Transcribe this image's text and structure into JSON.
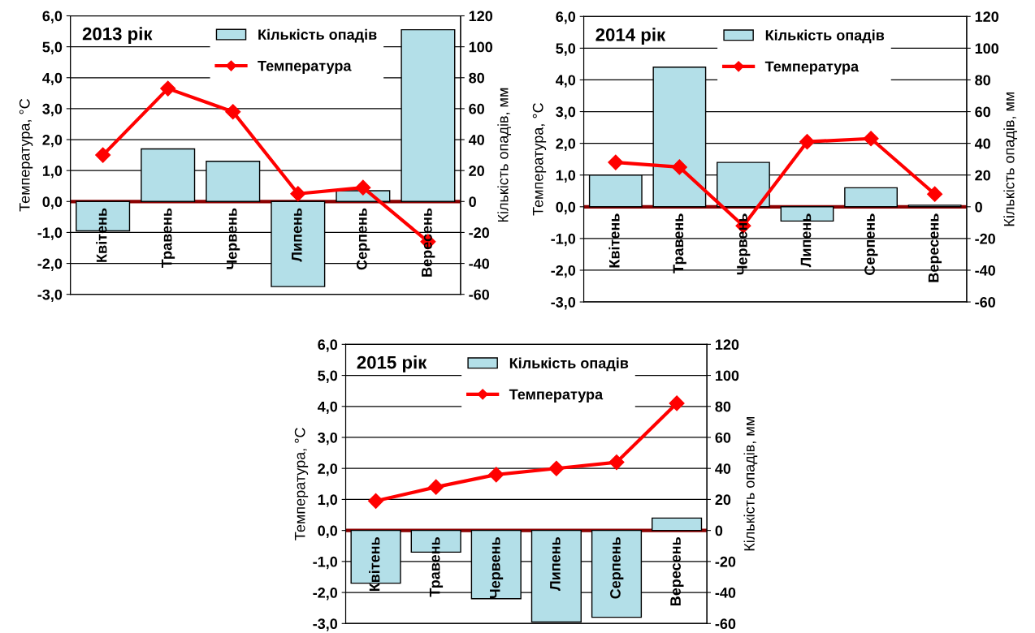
{
  "chart_data": [
    {
      "type": "bar",
      "title": "2013 рік",
      "ylabel": "Температура, °C",
      "y2label": "Кількість опадів, мм",
      "categories": [
        "Квітень",
        "Травень",
        "Червень",
        "Липень",
        "Серпень",
        "Вересень"
      ],
      "series": [
        {
          "name": "Кількість опадів",
          "axis": "y2",
          "color": "#b3dfe8",
          "values": [
            -19,
            34,
            26,
            -55,
            7,
            111
          ]
        },
        {
          "name": "Температура",
          "type": "line",
          "axis": "y",
          "color": "#ff0000",
          "marker": "diamond",
          "values": [
            1.5,
            3.65,
            2.9,
            0.25,
            0.45,
            -1.3
          ]
        }
      ],
      "ylim": [
        -3,
        6
      ],
      "yticks": [
        {
          "value": -3,
          "label": "-3,0"
        },
        {
          "value": -2,
          "label": "-2,0"
        },
        {
          "value": -1,
          "label": "-1,0"
        },
        {
          "value": 0,
          "label": "0,0"
        },
        {
          "value": 1,
          "label": "1,0"
        },
        {
          "value": 2,
          "label": "2,0"
        },
        {
          "value": 3,
          "label": "3,0"
        },
        {
          "value": 4,
          "label": "4,0"
        },
        {
          "value": 5,
          "label": "5,0"
        },
        {
          "value": 6,
          "label": "6,0"
        }
      ],
      "y2lim": [
        -60,
        120
      ],
      "y2ticks": [
        -60,
        -40,
        -20,
        0,
        20,
        40,
        60,
        80,
        100,
        120
      ],
      "grid": "y",
      "legend": "top right"
    },
    {
      "type": "bar",
      "title": "2014 рік",
      "ylabel": "Температура, °C",
      "y2label": "Кількість опадів, мм",
      "categories": [
        "Квітень",
        "Травень",
        "Червень",
        "Липень",
        "Серпень",
        "Вересень"
      ],
      "series": [
        {
          "name": "Кількість опадів",
          "axis": "y2",
          "color": "#b3dfe8",
          "values": [
            20,
            88,
            28,
            -9,
            12,
            1
          ]
        },
        {
          "name": "Температура",
          "type": "line",
          "axis": "y",
          "color": "#ff0000",
          "marker": "diamond",
          "values": [
            1.4,
            1.25,
            -0.6,
            2.05,
            2.15,
            0.4
          ]
        }
      ],
      "ylim": [
        -3,
        6
      ],
      "yticks": [
        {
          "value": -3,
          "label": "-3,0"
        },
        {
          "value": -2,
          "label": "-2,0"
        },
        {
          "value": -1,
          "label": "-1,0"
        },
        {
          "value": 0,
          "label": "0,0"
        },
        {
          "value": 1,
          "label": "1,0"
        },
        {
          "value": 2,
          "label": "2,0"
        },
        {
          "value": 3,
          "label": "3,0"
        },
        {
          "value": 4,
          "label": "4,0"
        },
        {
          "value": 5,
          "label": "5,0"
        },
        {
          "value": 6,
          "label": "6,0"
        }
      ],
      "y2lim": [
        -60,
        120
      ],
      "y2ticks": [
        -60,
        -40,
        -20,
        0,
        20,
        40,
        60,
        80,
        100,
        120
      ],
      "grid": "y",
      "legend": "top right"
    },
    {
      "type": "bar",
      "title": "2015 рік",
      "ylabel": "Температура, °C",
      "y2label": "Кількість опадів, мм",
      "categories": [
        "Квітень",
        "Травень",
        "Червень",
        "Липень",
        "Серпень",
        "Вересень"
      ],
      "series": [
        {
          "name": "Кількість опадів",
          "axis": "y2",
          "color": "#b3dfe8",
          "values": [
            -34,
            -14,
            -44,
            -59,
            -56,
            8
          ]
        },
        {
          "name": "Температура",
          "type": "line",
          "axis": "y",
          "color": "#ff0000",
          "marker": "diamond",
          "values": [
            0.95,
            1.4,
            1.8,
            2.0,
            2.2,
            4.1
          ]
        }
      ],
      "ylim": [
        -3,
        6
      ],
      "yticks": [
        {
          "value": -3,
          "label": "-3,0"
        },
        {
          "value": -2,
          "label": "-2,0"
        },
        {
          "value": -1,
          "label": "-1,0"
        },
        {
          "value": 0,
          "label": "0,0"
        },
        {
          "value": 1,
          "label": "1,0"
        },
        {
          "value": 2,
          "label": "2,0"
        },
        {
          "value": 3,
          "label": "3,0"
        },
        {
          "value": 4,
          "label": "4,0"
        },
        {
          "value": 5,
          "label": "5,0"
        },
        {
          "value": 6,
          "label": "6,0"
        }
      ],
      "y2lim": [
        -60,
        120
      ],
      "y2ticks": [
        -60,
        -40,
        -20,
        0,
        20,
        40,
        60,
        80,
        100,
        120
      ],
      "grid": "y",
      "legend": "top right"
    }
  ]
}
